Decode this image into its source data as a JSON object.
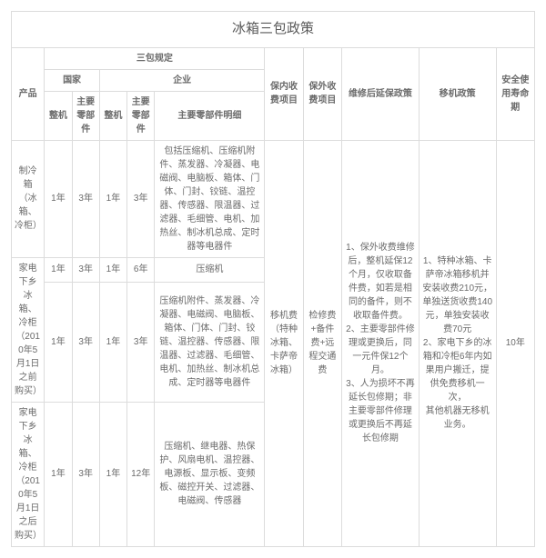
{
  "title": "冰箱三包政策",
  "headers": {
    "product": "产品",
    "sanbao": "三包规定",
    "national": "国家",
    "enterprise": "企业",
    "whole": "整机",
    "mainPart": "主要零部件",
    "mainPartDetail": "主要零部件明细",
    "inFee": "保内收费项目",
    "outFee": "保外收费项目",
    "extPolicy": "维修后延保政策",
    "movePolicy": "移机政策",
    "lifespan": "安全使用寿命期"
  },
  "rows": [
    {
      "product": "制冷箱（冰箱、冷柜）",
      "nat_whole": "1年",
      "nat_part": "3年",
      "ent_whole": "1年",
      "ent_part": "3年",
      "detail": "包括压缩机、压缩机附件、蒸发器、冷凝器、电磁阀、电脑板、箱体、门体、门封、铰链、温控器、传感器、限温器、过滤器、毛细管、电机、加热丝、制冰机总成、定时器等电器件"
    },
    {
      "product": "",
      "nat_whole": "1年",
      "nat_part": "3年",
      "ent_whole": "1年",
      "ent_part": "6年",
      "detail": "压缩机"
    },
    {
      "product": "家电下乡冰箱、冷柜（2010年5月1日之前购买）",
      "nat_whole": "1年",
      "nat_part": "3年",
      "ent_whole": "1年",
      "ent_part": "3年",
      "detail": "压缩机附件、蒸发器、冷凝器、电磁阀、电脑板、箱体、门体、门封、铰链、温控器、传感器、限温器、过滤器、毛细管、电机、加热丝、制冰机总成、定时器等电器件"
    },
    {
      "product": "家电下乡冰箱、冷柜（2010年5月1日之后购买）",
      "nat_whole": "1年",
      "nat_part": "3年",
      "ent_whole": "1年",
      "ent_part": "12年",
      "detail": "压缩机、继电器、热保护、风扇电机、温控器、电源板、显示板、变频板、磁控开关、过滤器、电磁阀、传感器"
    }
  ],
  "merged": {
    "inFee": "移机费（特种冰箱、卡萨帝冰箱）",
    "outFee": "检修费+备件费+远程交通费",
    "extPolicy": "1、保外收费维修后，整机延保12个月，仅收取备件费，如若是相同的备件，则不收取备件费。\n2、主要零部件修理或更换后，同一元件保12个月。\n3、人为损坏不再延长包修期；非主要零部件修理或更换后不再延长包修期",
    "movePolicy": "1、特种冰箱、卡萨帝冰箱移机并安装收费210元，单独送货收费140元，单独安装收费70元\n2、家电下乡的冰箱和冷柜6年内如果用户搬迁，提供免费移机一次，\n其他机器无移机业务。",
    "lifespan": "10年"
  }
}
